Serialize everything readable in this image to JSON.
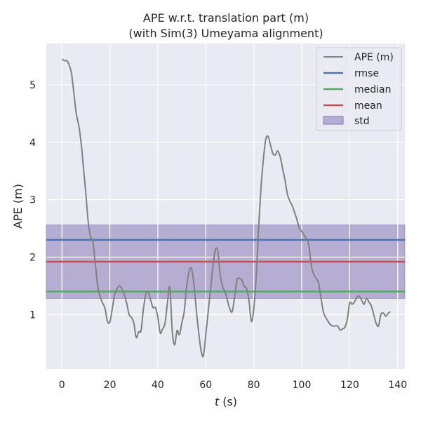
{
  "chart_data": {
    "type": "line",
    "title": [
      "APE w.r.t. translation part (m)",
      "(with Sim(3) Umeyama alignment)"
    ],
    "xlabel": "t (s)",
    "xlabel_var": "t",
    "xlabel_unit": "(s)",
    "ylabel": "APE (m)",
    "xlim": [
      -6.5,
      143
    ],
    "ylim": [
      0.05,
      5.72
    ],
    "xticks": [
      0,
      20,
      40,
      60,
      80,
      100,
      120,
      140
    ],
    "yticks": [
      1,
      2,
      3,
      4,
      5
    ],
    "grid": true,
    "legend_position": "top-right",
    "series": [
      {
        "name": "APE (m)",
        "color": "#808080",
        "x": [
          0,
          1,
          2,
          3,
          4,
          5,
          6,
          7,
          8,
          9,
          10,
          11,
          12,
          13,
          14,
          15,
          16,
          17,
          18,
          19,
          20,
          21,
          22,
          23,
          24,
          25,
          26,
          27,
          28,
          29,
          30,
          31,
          32,
          33,
          34,
          35,
          36,
          37,
          38,
          39,
          40,
          41,
          42,
          43,
          44,
          45,
          46,
          47,
          48,
          49,
          50,
          51,
          52,
          53,
          54,
          55,
          56,
          57,
          58,
          59,
          60,
          61,
          62,
          63,
          64,
          65,
          66,
          67,
          68,
          69,
          70,
          71,
          72,
          73,
          74,
          75,
          76,
          77,
          78,
          79,
          80,
          81,
          82,
          83,
          84,
          85,
          86,
          87,
          88,
          89,
          90,
          91,
          92,
          93,
          94,
          95,
          96,
          97,
          98,
          99,
          100,
          101,
          102,
          103,
          104,
          105,
          106,
          107,
          108,
          109,
          110,
          111,
          112,
          113,
          114,
          115,
          116,
          117,
          118,
          119,
          120,
          121,
          122,
          123,
          124,
          125,
          126,
          127,
          128,
          129,
          130,
          131,
          132,
          133,
          134,
          135,
          136,
          137
        ],
        "values": [
          5.45,
          5.42,
          5.42,
          5.35,
          5.2,
          4.85,
          4.5,
          4.3,
          4.0,
          3.55,
          3.1,
          2.6,
          2.35,
          2.25,
          1.85,
          1.48,
          1.3,
          1.2,
          1.1,
          0.88,
          0.87,
          1.1,
          1.35,
          1.45,
          1.5,
          1.45,
          1.35,
          1.2,
          1.0,
          0.95,
          0.85,
          0.6,
          0.7,
          0.72,
          1.1,
          1.35,
          1.4,
          1.25,
          1.12,
          1.12,
          0.95,
          0.68,
          0.75,
          0.85,
          1.2,
          1.47,
          0.72,
          0.47,
          0.72,
          0.65,
          0.85,
          1.05,
          1.48,
          1.75,
          1.8,
          1.55,
          1.1,
          0.7,
          0.38,
          0.28,
          0.65,
          1.05,
          1.45,
          1.85,
          2.13,
          2.1,
          1.7,
          1.48,
          1.4,
          1.25,
          1.1,
          1.05,
          1.3,
          1.6,
          1.63,
          1.6,
          1.5,
          1.45,
          1.25,
          0.88,
          1.1,
          1.65,
          2.5,
          3.2,
          3.7,
          4.05,
          4.1,
          3.95,
          3.8,
          3.78,
          3.85,
          3.75,
          3.55,
          3.35,
          3.1,
          2.98,
          2.9,
          2.78,
          2.65,
          2.5,
          2.45,
          2.38,
          2.32,
          2.2,
          1.85,
          1.7,
          1.63,
          1.55,
          1.3,
          1.05,
          0.95,
          0.88,
          0.82,
          0.8,
          0.8,
          0.8,
          0.73,
          0.75,
          0.78,
          0.92,
          1.2,
          1.18,
          1.22,
          1.3,
          1.32,
          1.25,
          1.18,
          1.28,
          1.22,
          1.15,
          1.0,
          0.85,
          0.8,
          1.0,
          1.03,
          0.97,
          1.02,
          1.05
        ]
      },
      {
        "name": "rmse",
        "color": "#4c72b0",
        "value": 2.3
      },
      {
        "name": "median",
        "color": "#55a868",
        "value": 1.4
      },
      {
        "name": "mean",
        "color": "#c44e52",
        "value": 1.92
      },
      {
        "name": "std",
        "color": "#8172b2",
        "range": [
          1.28,
          2.56
        ]
      }
    ]
  }
}
